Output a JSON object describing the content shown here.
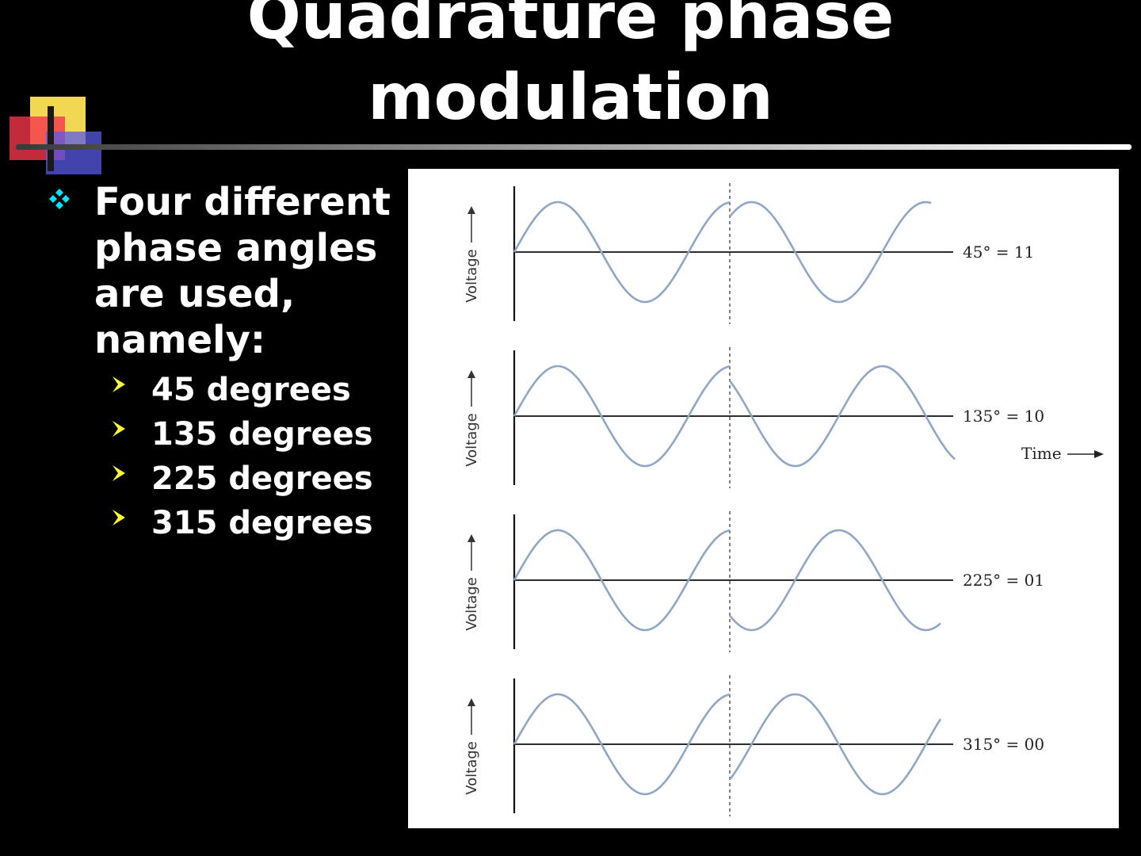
{
  "slide": {
    "title_lines": [
      "Quadrature phase",
      "modulation"
    ]
  },
  "bullets": {
    "main_text": "Four different phase angles are used, namely:",
    "items": [
      "45 degrees",
      "135 degrees",
      "225 degrees",
      "315 degrees"
    ],
    "main_bullet_icon": "diamond-bullet-icon",
    "sub_bullet_icon": "arrowhead-bullet-icon"
  },
  "figure": {
    "y_axis_label": "Voltage",
    "time_label": "Time",
    "panels": [
      {
        "label": "45° = 11",
        "phase_deg": 45
      },
      {
        "label": "135° = 10",
        "phase_deg": 135
      },
      {
        "label": "225° = 01",
        "phase_deg": 225
      },
      {
        "label": "315° = 00",
        "phase_deg": 315
      }
    ]
  },
  "colors": {
    "background": "#000000",
    "text": "#ffffff",
    "main_bullet": "#00e5ff",
    "sub_bullet": "#ffff33",
    "wave": "#8fa6c4",
    "axis": "#111111"
  }
}
